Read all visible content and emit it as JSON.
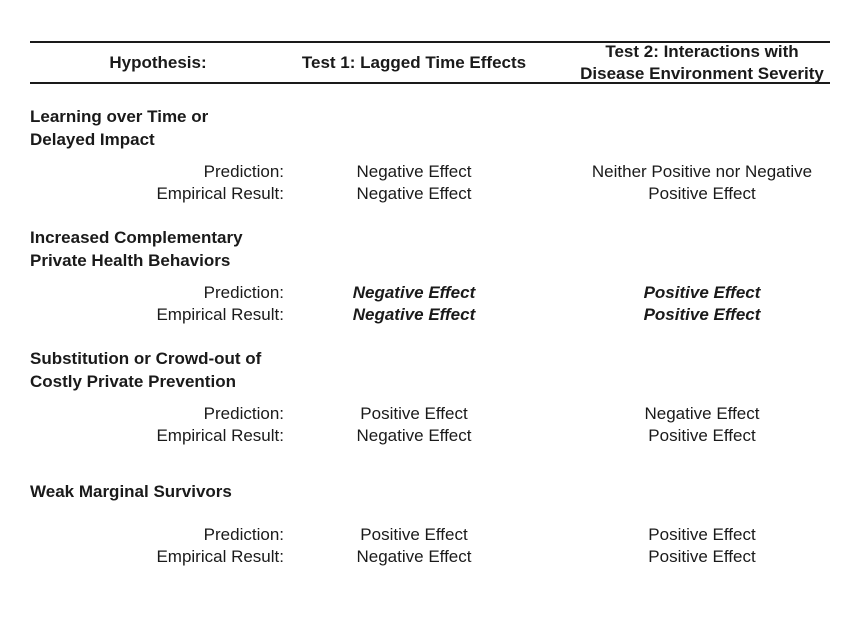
{
  "header": {
    "hypothesis": "Hypothesis:",
    "test1": "Test 1: Lagged Time Effects",
    "test2_line1": "Test 2: Interactions with",
    "test2_line2": "Disease Environment Severity"
  },
  "row_labels": {
    "prediction": "Prediction:",
    "empirical": "Empirical Result:"
  },
  "sections": [
    {
      "title_line1": "Learning over Time or",
      "title_line2": "Delayed Impact",
      "prediction": {
        "test1": "Negative Effect",
        "test2": "Neither Positive nor Negative"
      },
      "empirical": {
        "test1": "Negative Effect",
        "test2": "Positive Effect"
      }
    },
    {
      "title_line1": "Increased Complementary",
      "title_line2": "Private Health Behaviors",
      "prediction": {
        "test1": "Negative Effect",
        "test2": "Positive Effect"
      },
      "empirical": {
        "test1": "Negative Effect",
        "test2": "Positive Effect"
      }
    },
    {
      "title_line1": "Substitution or Crowd-out of",
      "title_line2": "Costly Private Prevention",
      "prediction": {
        "test1": "Positive Effect",
        "test2": "Negative Effect"
      },
      "empirical": {
        "test1": "Negative Effect",
        "test2": "Positive Effect"
      }
    },
    {
      "title_line1": "Weak Marginal Survivors",
      "title_line2": "",
      "prediction": {
        "test1": "Positive Effect",
        "test2": "Positive Effect"
      },
      "empirical": {
        "test1": "Negative Effect",
        "test2": "Positive Effect"
      }
    }
  ]
}
